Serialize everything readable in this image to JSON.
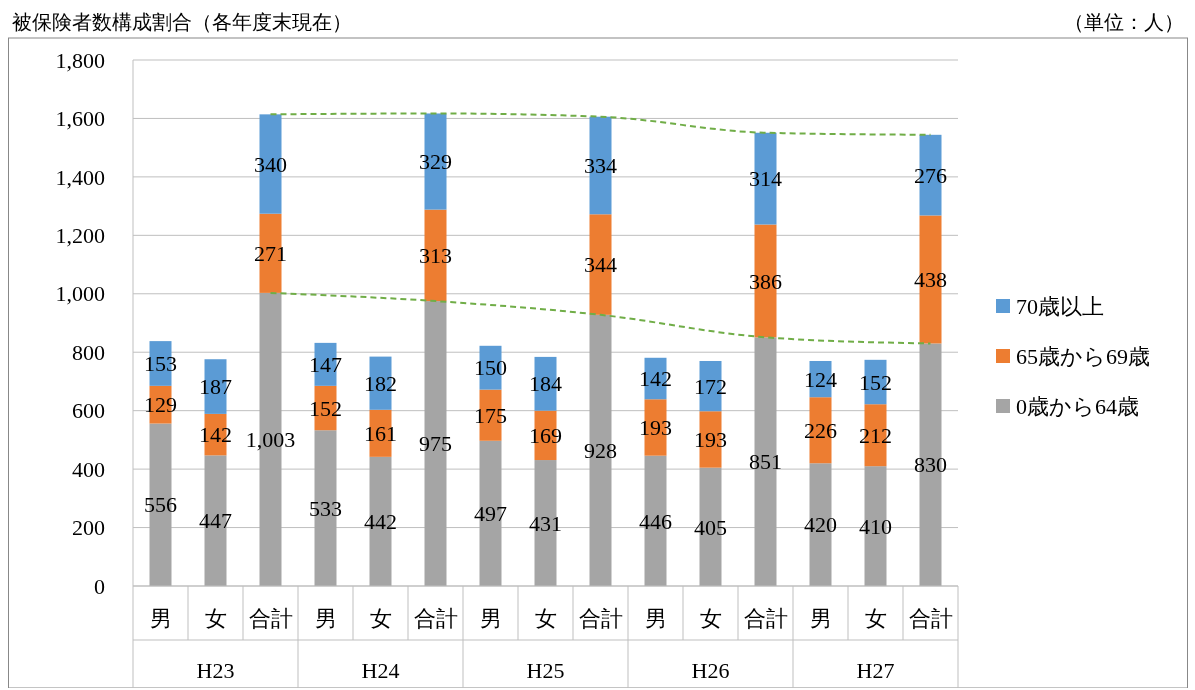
{
  "chart_data": {
    "type": "bar",
    "stacked": true,
    "title": "被保険者数構成割合（各年度末現在）",
    "annotations": [
      "（単位：人）",
      "H23",
      "H24",
      "H25",
      "H26",
      "H27"
    ],
    "categories": [
      "男",
      "女",
      "合計",
      "男",
      "女",
      "合計",
      "男",
      "女",
      "合計",
      "男",
      "女",
      "合計",
      "男",
      "女",
      "合計"
    ],
    "series": [
      {
        "name": "0歳から64歳",
        "color": "#a5a5a5",
        "values": [
          556,
          447,
          1003,
          533,
          442,
          975,
          497,
          431,
          928,
          446,
          405,
          851,
          420,
          410,
          830
        ],
        "value_labels": [
          "556",
          "447",
          "1,003",
          "533",
          "442",
          "975",
          "497",
          "431",
          "928",
          "446",
          "405",
          "851",
          "420",
          "410",
          "830"
        ]
      },
      {
        "name": "65歳から69歳",
        "color": "#ed7d31",
        "values": [
          129,
          142,
          271,
          152,
          161,
          313,
          175,
          169,
          344,
          193,
          193,
          386,
          226,
          212,
          438
        ],
        "value_labels": [
          "129",
          "142",
          "271",
          "152",
          "161",
          "313",
          "175",
          "169",
          "344",
          "193",
          "193",
          "386",
          "226",
          "212",
          "438"
        ]
      },
      {
        "name": "70歳以上",
        "color": "#5b9bd5",
        "values": [
          153,
          187,
          340,
          147,
          182,
          329,
          150,
          184,
          334,
          142,
          172,
          314,
          124,
          152,
          276
        ],
        "value_labels": [
          "153",
          "187",
          "340",
          "147",
          "182",
          "329",
          "150",
          "184",
          "334",
          "142",
          "172",
          "314",
          "124",
          "152",
          "276"
        ]
      },
      {
        "type": "line",
        "color": "#70ad47",
        "line_style": "dashed",
        "marker": "none",
        "values": [
          null,
          null,
          1614,
          null,
          null,
          1617,
          null,
          null,
          1606,
          null,
          null,
          1551,
          null,
          null,
          1544
        ]
      },
      {
        "type": "line",
        "color": "#70ad47",
        "line_style": "dashed",
        "marker": "none",
        "values": [
          null,
          null,
          1003,
          null,
          null,
          975,
          null,
          null,
          928,
          null,
          null,
          851,
          null,
          null,
          830
        ]
      }
    ],
    "ylim": [
      0,
      1800
    ],
    "yticks": [
      {
        "value": 0,
        "label": "0"
      },
      {
        "value": 200,
        "label": "200"
      },
      {
        "value": 400,
        "label": "400"
      },
      {
        "value": 600,
        "label": "600"
      },
      {
        "value": 800,
        "label": "800"
      },
      {
        "value": 1000,
        "label": "1,000"
      },
      {
        "value": 1200,
        "label": "1,200"
      },
      {
        "value": 1400,
        "label": "1,400"
      },
      {
        "value": 1600,
        "label": "1,600"
      },
      {
        "value": 1800,
        "label": "1,800"
      }
    ],
    "grid": "y",
    "legend": "right"
  }
}
